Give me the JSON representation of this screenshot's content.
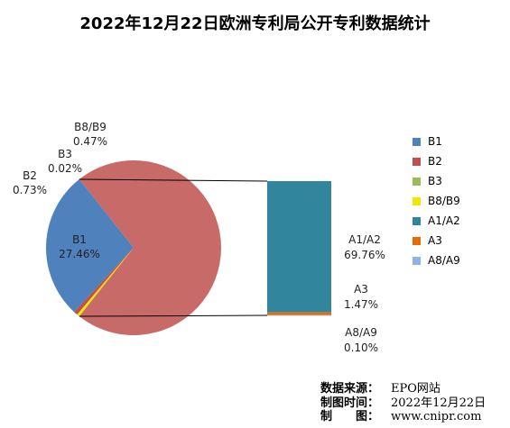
{
  "title": "2022年12月22日欧洲专利局公开专利数据统计",
  "colors": {
    "B1": "#4f81bd",
    "B2": "#c0504d",
    "B3": "#9bbb59",
    "B8/B9": "#f5e400",
    "A1/A2": "#31859c",
    "A3": "#e46c0a",
    "A8/A9": "#8eb4e3",
    "pie_main": "#c86a68"
  },
  "chart_data": {
    "type": "pie",
    "pie": {
      "slices": [
        {
          "name": "B1",
          "value": 27.46,
          "label": "27.46%"
        },
        {
          "name": "B2",
          "value": 0.73,
          "label": "0.73%"
        },
        {
          "name": "B3",
          "value": 0.02,
          "label": "0.02%"
        },
        {
          "name": "B8/B9",
          "value": 0.47,
          "label": "0.47%"
        }
      ],
      "other_total": 71.33
    },
    "bar": {
      "segments": [
        {
          "name": "A1/A2",
          "value": 69.76,
          "label": "69.76%"
        },
        {
          "name": "A3",
          "value": 1.47,
          "label": "1.47%"
        },
        {
          "name": "A8/A9",
          "value": 0.1,
          "label": "0.10%"
        }
      ]
    },
    "legend": [
      "B1",
      "B2",
      "B3",
      "B8/B9",
      "A1/A2",
      "A3",
      "A8/A9"
    ],
    "legend_position": "right"
  },
  "source": [
    {
      "key": "数据来源：",
      "value": "EPO网站"
    },
    {
      "key": "制图时间：",
      "value": "2022年12月22日"
    },
    {
      "key": "制　　图：",
      "value": "www.cnipr.com"
    }
  ]
}
